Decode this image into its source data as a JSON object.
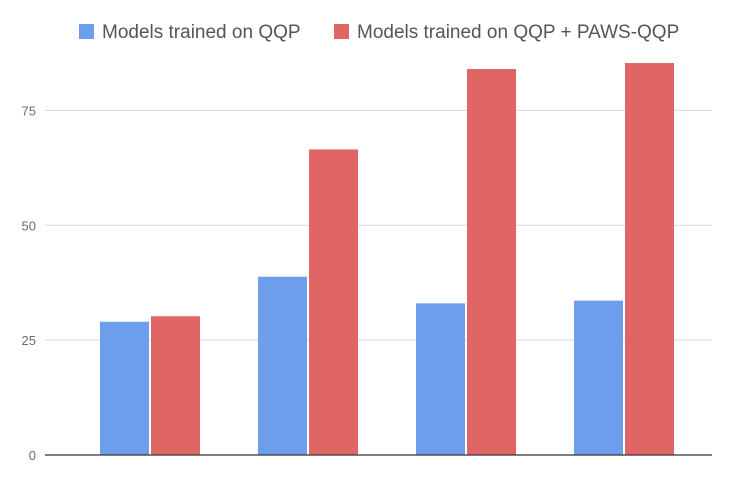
{
  "chart_data": {
    "type": "bar",
    "title": "",
    "xlabel": "",
    "ylabel": "",
    "categories": [
      "",
      "",
      "",
      ""
    ],
    "series": [
      {
        "name": "Models trained on QQP",
        "values": [
          29.0,
          38.8,
          33.0,
          33.6
        ],
        "color": "#6d9eeb"
      },
      {
        "name": "Models trained on QQP + PAWS-QQP",
        "values": [
          30.2,
          66.5,
          84.0,
          85.3
        ],
        "color": "#e06666"
      }
    ],
    "ylim": [
      0,
      94
    ],
    "yticks": [
      0,
      25,
      50,
      75
    ],
    "ytick_labels": [
      "0",
      "25",
      "50",
      "75"
    ],
    "grid": true,
    "legend": "top-center"
  }
}
